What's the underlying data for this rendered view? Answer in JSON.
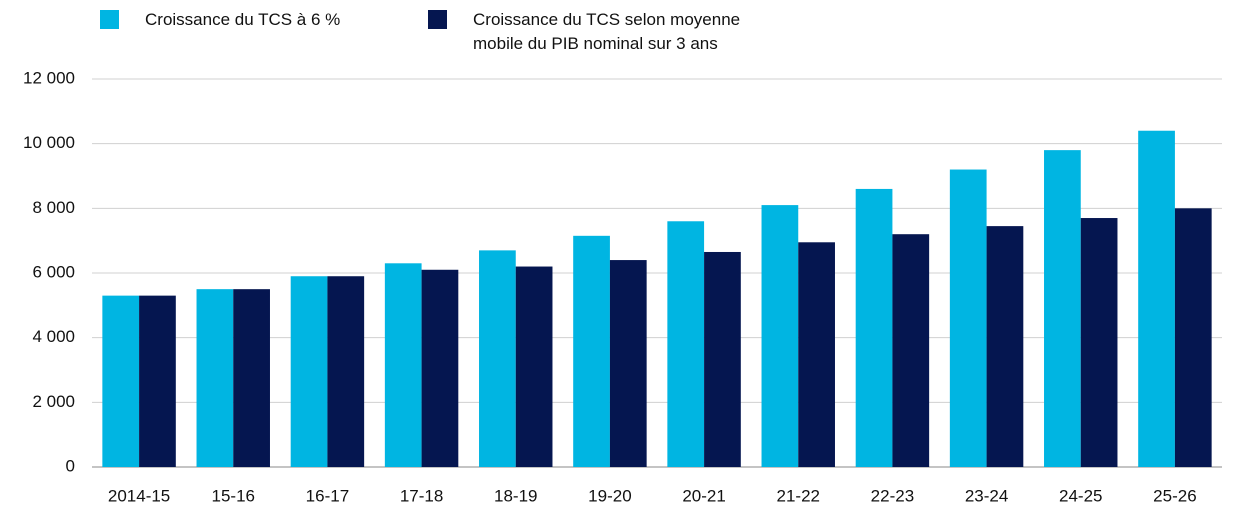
{
  "chart_data": {
    "type": "bar",
    "categories": [
      "2014-15",
      "15-16",
      "16-17",
      "17-18",
      "18-19",
      "19-20",
      "20-21",
      "21-22",
      "22-23",
      "23-24",
      "24-25",
      "25-26"
    ],
    "series": [
      {
        "name": "Croissance du TCS à 6 %",
        "color": "#00b5e2",
        "values": [
          5300,
          5500,
          5900,
          6300,
          6700,
          7150,
          7600,
          8100,
          8600,
          9200,
          9800,
          10400
        ]
      },
      {
        "name": "Croissance du TCS selon moyenne mobile du PIB nominal sur 3 ans",
        "color": "#051650",
        "values": [
          5300,
          5500,
          5900,
          6100,
          6200,
          6400,
          6650,
          6950,
          7200,
          7450,
          7700,
          8000
        ]
      }
    ],
    "ylim": [
      0,
      12000
    ],
    "yticks": [
      0,
      {
        "value": 2000,
        "label": "2 000"
      },
      {
        "value": 4000,
        "label": "4 000"
      },
      {
        "value": 6000,
        "label": "6 000"
      },
      {
        "value": 8000,
        "label": "8 000"
      },
      {
        "value": 10000,
        "label": "10 000"
      },
      {
        "value": 12000,
        "label": "12 000"
      }
    ],
    "grid": true,
    "legend": "top"
  }
}
